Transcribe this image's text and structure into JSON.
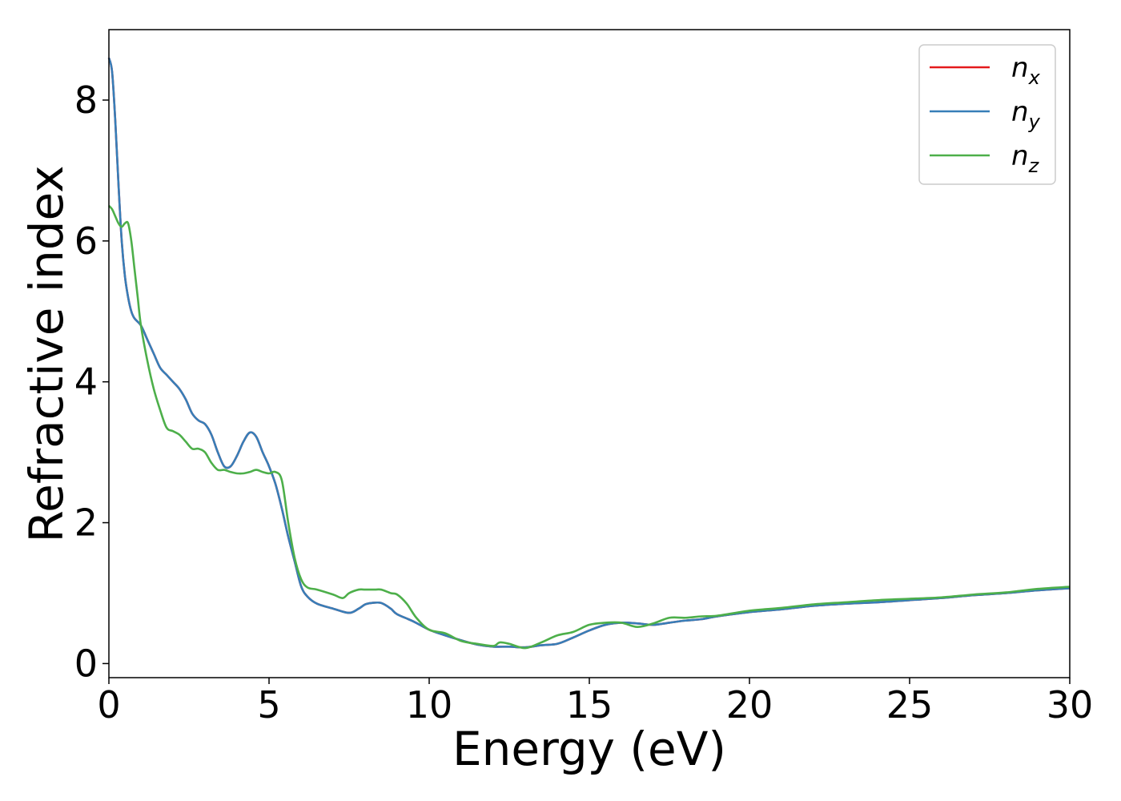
{
  "chart_data": {
    "type": "line",
    "xlabel": "Energy (eV)",
    "ylabel": "Refractive index",
    "xlim": [
      0,
      30
    ],
    "ylim": [
      -0.2,
      9.0
    ],
    "x_ticks": [
      "0",
      "5",
      "10",
      "15",
      "20",
      "25",
      "30"
    ],
    "y_ticks": [
      "0",
      "2",
      "4",
      "6",
      "8"
    ],
    "x_tick_values": [
      0,
      5,
      10,
      15,
      20,
      25,
      30
    ],
    "y_tick_values": [
      0,
      2,
      4,
      6,
      8
    ],
    "grid": false,
    "legend_position": "top-right",
    "series": [
      {
        "name": "n_x",
        "base": "n",
        "sub": "x",
        "color": "#e41a1c",
        "x": [
          0,
          0.1,
          0.2,
          0.3,
          0.4,
          0.5,
          0.6,
          0.7,
          0.8,
          1.0,
          1.2,
          1.4,
          1.6,
          1.8,
          2.0,
          2.2,
          2.4,
          2.6,
          2.8,
          3.0,
          3.2,
          3.4,
          3.6,
          3.8,
          4.0,
          4.2,
          4.4,
          4.6,
          4.8,
          5.0,
          5.2,
          5.4,
          5.6,
          5.8,
          6.0,
          6.2,
          6.5,
          7.0,
          7.5,
          7.8,
          8.0,
          8.2,
          8.5,
          8.8,
          9.0,
          9.5,
          10.0,
          10.5,
          11.0,
          11.5,
          12.0,
          12.5,
          13.0,
          13.5,
          14.0,
          14.5,
          15.0,
          15.5,
          16.0,
          16.5,
          17.0,
          17.5,
          18.0,
          18.5,
          19.0,
          20.0,
          21.0,
          22.0,
          23.0,
          24.0,
          25.0,
          26.0,
          27.0,
          28.0,
          29.0,
          30.0
        ],
        "y": [
          8.6,
          8.4,
          7.7,
          6.8,
          6.0,
          5.5,
          5.2,
          5.0,
          4.9,
          4.8,
          4.6,
          4.4,
          4.2,
          4.1,
          4.0,
          3.9,
          3.75,
          3.55,
          3.45,
          3.4,
          3.25,
          3.0,
          2.8,
          2.8,
          2.95,
          3.15,
          3.28,
          3.22,
          3.0,
          2.8,
          2.55,
          2.2,
          1.8,
          1.45,
          1.1,
          0.95,
          0.85,
          0.78,
          0.72,
          0.78,
          0.84,
          0.86,
          0.86,
          0.78,
          0.7,
          0.6,
          0.48,
          0.4,
          0.33,
          0.27,
          0.24,
          0.24,
          0.23,
          0.26,
          0.28,
          0.37,
          0.47,
          0.55,
          0.58,
          0.57,
          0.55,
          0.58,
          0.61,
          0.63,
          0.67,
          0.73,
          0.77,
          0.82,
          0.85,
          0.87,
          0.9,
          0.93,
          0.97,
          1.0,
          1.04,
          1.07
        ]
      },
      {
        "name": "n_y",
        "base": "n",
        "sub": "y",
        "color": "#377eb8",
        "x": [
          0,
          0.1,
          0.2,
          0.3,
          0.4,
          0.5,
          0.6,
          0.7,
          0.8,
          1.0,
          1.2,
          1.4,
          1.6,
          1.8,
          2.0,
          2.2,
          2.4,
          2.6,
          2.8,
          3.0,
          3.2,
          3.4,
          3.6,
          3.8,
          4.0,
          4.2,
          4.4,
          4.6,
          4.8,
          5.0,
          5.2,
          5.4,
          5.6,
          5.8,
          6.0,
          6.2,
          6.5,
          7.0,
          7.5,
          7.8,
          8.0,
          8.2,
          8.5,
          8.8,
          9.0,
          9.5,
          10.0,
          10.5,
          11.0,
          11.5,
          12.0,
          12.5,
          13.0,
          13.5,
          14.0,
          14.5,
          15.0,
          15.5,
          16.0,
          16.5,
          17.0,
          17.5,
          18.0,
          18.5,
          19.0,
          20.0,
          21.0,
          22.0,
          23.0,
          24.0,
          25.0,
          26.0,
          27.0,
          28.0,
          29.0,
          30.0
        ],
        "y": [
          8.6,
          8.4,
          7.7,
          6.8,
          6.0,
          5.5,
          5.2,
          5.0,
          4.9,
          4.8,
          4.6,
          4.4,
          4.2,
          4.1,
          4.0,
          3.9,
          3.75,
          3.55,
          3.45,
          3.4,
          3.25,
          3.0,
          2.8,
          2.8,
          2.95,
          3.15,
          3.28,
          3.22,
          3.0,
          2.8,
          2.55,
          2.2,
          1.8,
          1.45,
          1.1,
          0.95,
          0.85,
          0.78,
          0.72,
          0.78,
          0.84,
          0.86,
          0.86,
          0.78,
          0.7,
          0.6,
          0.48,
          0.4,
          0.33,
          0.27,
          0.24,
          0.24,
          0.23,
          0.26,
          0.28,
          0.37,
          0.47,
          0.55,
          0.58,
          0.57,
          0.55,
          0.58,
          0.61,
          0.63,
          0.67,
          0.73,
          0.77,
          0.82,
          0.85,
          0.87,
          0.9,
          0.93,
          0.97,
          1.0,
          1.04,
          1.07
        ]
      },
      {
        "name": "n_z",
        "base": "n",
        "sub": "z",
        "color": "#4daf4a",
        "x": [
          0,
          0.1,
          0.2,
          0.3,
          0.4,
          0.5,
          0.6,
          0.7,
          0.8,
          0.9,
          1.0,
          1.2,
          1.4,
          1.6,
          1.8,
          2.0,
          2.2,
          2.4,
          2.6,
          2.8,
          3.0,
          3.2,
          3.4,
          3.6,
          3.8,
          4.0,
          4.2,
          4.4,
          4.6,
          4.8,
          5.0,
          5.2,
          5.4,
          5.6,
          5.8,
          6.0,
          6.2,
          6.5,
          7.0,
          7.3,
          7.5,
          7.8,
          8.0,
          8.3,
          8.5,
          8.8,
          9.0,
          9.3,
          9.6,
          10.0,
          10.5,
          11.0,
          11.5,
          12.0,
          12.2,
          12.5,
          13.0,
          13.5,
          14.0,
          14.5,
          15.0,
          15.5,
          16.0,
          16.5,
          17.0,
          17.5,
          18.0,
          18.5,
          19.0,
          20.0,
          21.0,
          22.0,
          23.0,
          24.0,
          25.0,
          26.0,
          27.0,
          28.0,
          29.0,
          30.0
        ],
        "y": [
          6.5,
          6.45,
          6.35,
          6.25,
          6.2,
          6.25,
          6.25,
          6.0,
          5.6,
          5.2,
          4.8,
          4.3,
          3.9,
          3.6,
          3.35,
          3.3,
          3.25,
          3.15,
          3.05,
          3.05,
          3.0,
          2.85,
          2.75,
          2.75,
          2.72,
          2.7,
          2.7,
          2.72,
          2.75,
          2.72,
          2.7,
          2.72,
          2.6,
          2.0,
          1.5,
          1.2,
          1.08,
          1.05,
          0.98,
          0.93,
          1.0,
          1.05,
          1.05,
          1.05,
          1.05,
          1.0,
          0.98,
          0.85,
          0.65,
          0.48,
          0.43,
          0.32,
          0.28,
          0.25,
          0.3,
          0.28,
          0.22,
          0.3,
          0.4,
          0.45,
          0.55,
          0.58,
          0.58,
          0.52,
          0.57,
          0.65,
          0.65,
          0.67,
          0.68,
          0.75,
          0.79,
          0.84,
          0.87,
          0.9,
          0.92,
          0.94,
          0.98,
          1.01,
          1.06,
          1.09
        ]
      }
    ]
  }
}
